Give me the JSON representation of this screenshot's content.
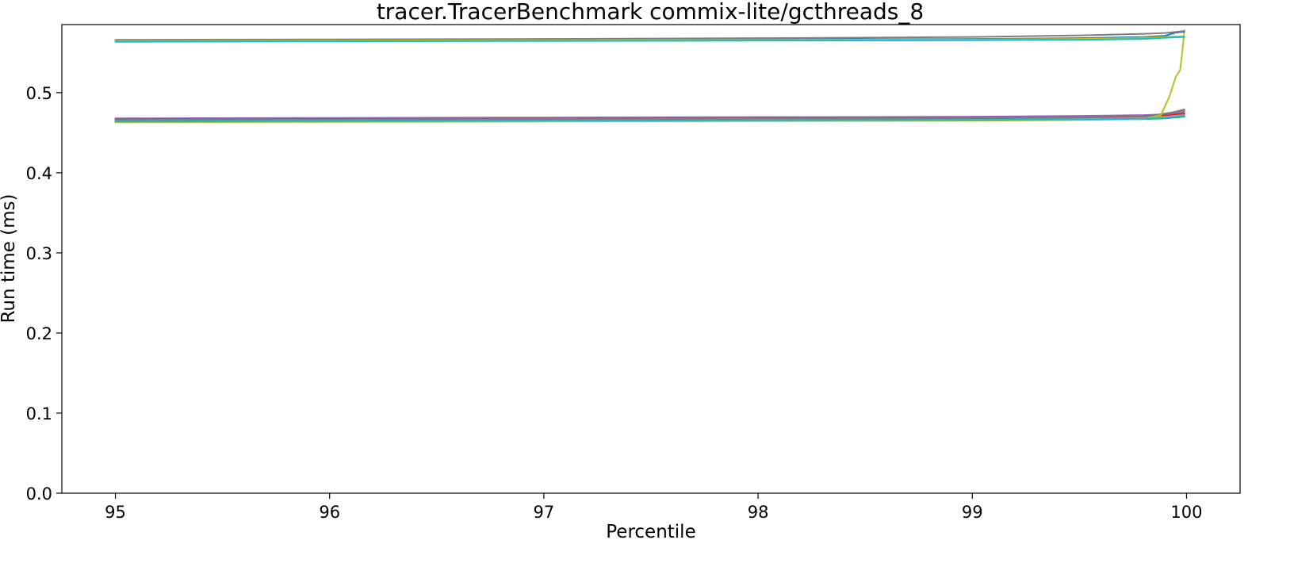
{
  "chart_data": {
    "type": "line",
    "title": "tracer.TracerBenchmark commix-lite/gcthreads_8",
    "xlabel": "Percentile",
    "ylabel": "Run time (ms)",
    "xlim": [
      94.75,
      100.25
    ],
    "ylim": [
      0.0,
      0.585
    ],
    "xticks": [
      95,
      96,
      97,
      98,
      99,
      100
    ],
    "xtick_labels": [
      "95",
      "96",
      "97",
      "98",
      "99",
      "100"
    ],
    "yticks": [
      0.0,
      0.1,
      0.2,
      0.3,
      0.4,
      0.5
    ],
    "ytick_labels": [
      "0.0",
      "0.1",
      "0.2",
      "0.3",
      "0.4",
      "0.5"
    ],
    "grid": false,
    "legend": "none",
    "series": [
      {
        "color": "#1f77b4",
        "x": [
          95,
          96,
          97,
          98,
          99,
          99.5,
          99.8,
          99.9,
          99.99
        ],
        "y": [
          0.465,
          0.4655,
          0.466,
          0.4665,
          0.467,
          0.4675,
          0.468,
          0.469,
          0.471
        ]
      },
      {
        "color": "#ff7f0e",
        "x": [
          95,
          96,
          97,
          98,
          99,
          99.5,
          99.8,
          99.9,
          99.99
        ],
        "y": [
          0.466,
          0.4665,
          0.467,
          0.4675,
          0.468,
          0.469,
          0.47,
          0.471,
          0.473
        ]
      },
      {
        "color": "#2ca02c",
        "x": [
          95,
          96,
          97,
          98,
          99,
          99.5,
          99.8,
          99.9,
          99.99
        ],
        "y": [
          0.464,
          0.4645,
          0.465,
          0.4655,
          0.466,
          0.4665,
          0.467,
          0.468,
          0.47
        ]
      },
      {
        "color": "#d62728",
        "x": [
          95,
          96,
          97,
          98,
          99,
          99.5,
          99.8,
          99.9,
          99.99
        ],
        "y": [
          0.467,
          0.4675,
          0.468,
          0.4685,
          0.469,
          0.47,
          0.471,
          0.472,
          0.474
        ]
      },
      {
        "color": "#9467bd",
        "x": [
          95,
          96,
          97,
          98,
          99,
          99.5,
          99.8,
          99.9,
          99.99
        ],
        "y": [
          0.468,
          0.4685,
          0.469,
          0.4695,
          0.47,
          0.471,
          0.472,
          0.473,
          0.476
        ]
      },
      {
        "color": "#8c564b",
        "x": [
          95,
          96,
          97,
          98,
          99,
          99.5,
          99.8,
          99.9,
          99.99
        ],
        "y": [
          0.4665,
          0.467,
          0.4675,
          0.468,
          0.4685,
          0.469,
          0.4705,
          0.473,
          0.479
        ]
      },
      {
        "color": "#e377c2",
        "x": [
          95,
          96,
          97,
          98,
          99,
          99.5,
          99.8,
          99.9,
          99.99
        ],
        "y": [
          0.465,
          0.4655,
          0.466,
          0.4665,
          0.467,
          0.4675,
          0.468,
          0.4695,
          0.472
        ]
      },
      {
        "color": "#7f7f7f",
        "x": [
          95,
          96,
          97,
          98,
          99,
          99.5,
          99.8,
          99.9,
          99.99
        ],
        "y": [
          0.466,
          0.4665,
          0.467,
          0.4675,
          0.468,
          0.469,
          0.47,
          0.474,
          0.478
        ]
      },
      {
        "color": "#bcbd22",
        "x": [
          95,
          96,
          97,
          98,
          99,
          99.5,
          99.8,
          99.88,
          99.92,
          99.95,
          99.97,
          99.98,
          99.99
        ],
        "y": [
          0.463,
          0.4635,
          0.464,
          0.4645,
          0.465,
          0.466,
          0.467,
          0.472,
          0.495,
          0.52,
          0.528,
          0.55,
          0.578
        ]
      },
      {
        "color": "#17becf",
        "x": [
          95,
          96,
          97,
          98,
          99,
          99.5,
          99.8,
          99.9,
          99.99
        ],
        "y": [
          0.464,
          0.4645,
          0.465,
          0.4655,
          0.466,
          0.4665,
          0.4675,
          0.4685,
          0.471
        ]
      },
      {
        "color": "#1f77b4",
        "x": [
          95,
          96,
          97,
          98,
          99,
          99.5,
          99.8,
          99.9,
          99.95,
          99.99
        ],
        "y": [
          0.565,
          0.5655,
          0.566,
          0.5665,
          0.567,
          0.568,
          0.5695,
          0.571,
          0.575,
          0.576
        ]
      },
      {
        "color": "#7f7f7f",
        "x": [
          95,
          96,
          97,
          98,
          99,
          99.5,
          99.8,
          99.9,
          99.99
        ],
        "y": [
          0.566,
          0.5665,
          0.567,
          0.568,
          0.5695,
          0.5715,
          0.5735,
          0.5745,
          0.577
        ]
      },
      {
        "color": "#bcbd22",
        "x": [
          95,
          96,
          97,
          98,
          99,
          99.5,
          99.8,
          99.9,
          99.99
        ],
        "y": [
          0.5645,
          0.565,
          0.5655,
          0.566,
          0.5665,
          0.567,
          0.5685,
          0.5695,
          0.5705
        ]
      },
      {
        "color": "#17becf",
        "x": [
          95,
          96,
          97,
          98,
          99,
          99.5,
          99.8,
          99.9,
          99.99
        ],
        "y": [
          0.5635,
          0.564,
          0.5645,
          0.565,
          0.5655,
          0.566,
          0.567,
          0.5685,
          0.5695
        ]
      }
    ]
  }
}
